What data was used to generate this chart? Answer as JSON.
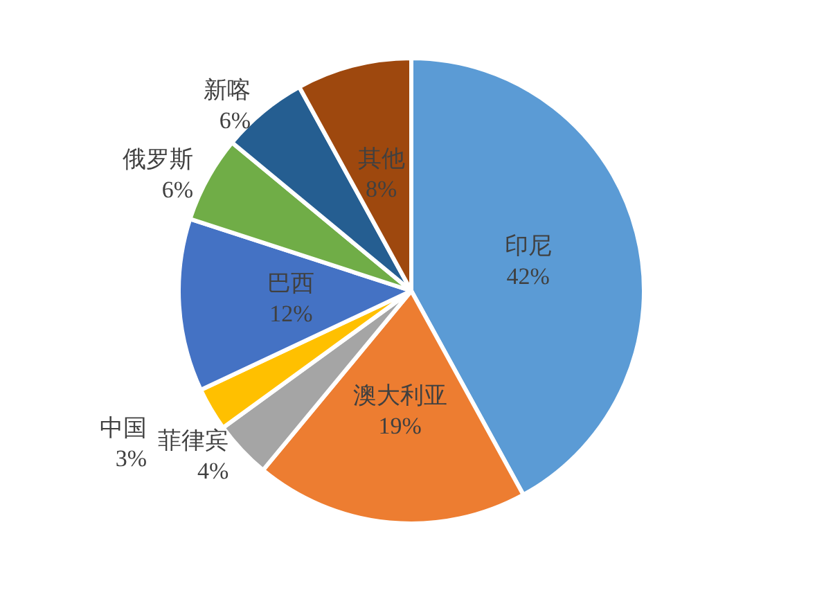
{
  "chart_data": {
    "type": "pie",
    "categories": [
      "印尼",
      "澳大利亚",
      "菲律宾",
      "中国",
      "巴西",
      "俄罗斯",
      "新喀",
      "其他"
    ],
    "values": [
      42,
      19,
      4,
      3,
      12,
      6,
      6,
      8
    ],
    "colors": [
      "#5b9bd5",
      "#ed7d31",
      "#a5a5a5",
      "#ffc000",
      "#4472c4",
      "#70ad47",
      "#255e91",
      "#9e480e"
    ],
    "value_labels": [
      "42%",
      "19%",
      "4%",
      "3%",
      "12%",
      "6%",
      "6%",
      "8%"
    ],
    "legend": false
  }
}
